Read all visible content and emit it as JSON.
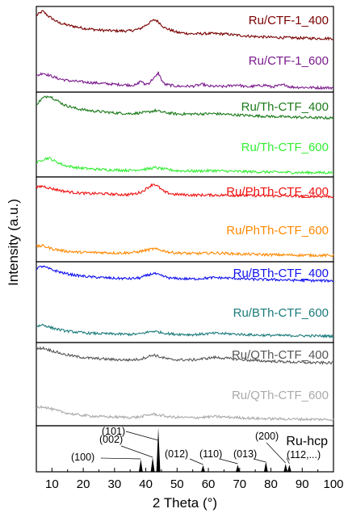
{
  "chart_data": {
    "type": "line",
    "xlabel": "2 Theta (°)",
    "ylabel": "Intensity (a.u.)",
    "xlim": [
      5,
      100
    ],
    "xticks": [
      "10",
      "20",
      "30",
      "40",
      "50",
      "60",
      "70",
      "80",
      "90",
      "100"
    ],
    "grid": false,
    "panels": [
      {
        "series": [
          {
            "name": "Ru/CTF-1_400",
            "color": "#7a0000",
            "points": [
              [
                5,
                0.8
              ],
              [
                7,
                0.92
              ],
              [
                9,
                0.78
              ],
              [
                12,
                0.62
              ],
              [
                15,
                0.55
              ],
              [
                20,
                0.47
              ],
              [
                25,
                0.42
              ],
              [
                30,
                0.4
              ],
              [
                35,
                0.4
              ],
              [
                38,
                0.45
              ],
              [
                40,
                0.55
              ],
              [
                42,
                0.66
              ],
              [
                43,
                0.69
              ],
              [
                44,
                0.64
              ],
              [
                46,
                0.48
              ],
              [
                50,
                0.36
              ],
              [
                55,
                0.32
              ],
              [
                60,
                0.33
              ],
              [
                65,
                0.32
              ],
              [
                70,
                0.28
              ],
              [
                75,
                0.25
              ],
              [
                80,
                0.23
              ],
              [
                85,
                0.22
              ],
              [
                90,
                0.21
              ],
              [
                95,
                0.2
              ],
              [
                100,
                0.2
              ]
            ]
          },
          {
            "name": "Ru/CTF-1_600",
            "color": "#7a1a8c",
            "points": [
              [
                5,
                0.33
              ],
              [
                7,
                0.42
              ],
              [
                9,
                0.36
              ],
              [
                12,
                0.27
              ],
              [
                15,
                0.22
              ],
              [
                20,
                0.18
              ],
              [
                25,
                0.15
              ],
              [
                30,
                0.12
              ],
              [
                35,
                0.1
              ],
              [
                37,
                0.1
              ],
              [
                38.4,
                0.22
              ],
              [
                39.5,
                0.12
              ],
              [
                41,
                0.15
              ],
              [
                42.2,
                0.26
              ],
              [
                43.2,
                0.32
              ],
              [
                44,
                0.43
              ],
              [
                45,
                0.24
              ],
              [
                46,
                0.12
              ],
              [
                50,
                0.07
              ],
              [
                55,
                0.07
              ],
              [
                58.3,
                0.12
              ],
              [
                60,
                0.07
              ],
              [
                65,
                0.06
              ],
              [
                69.4,
                0.11
              ],
              [
                72,
                0.05
              ],
              [
                78.4,
                0.1
              ],
              [
                80,
                0.05
              ],
              [
                84.7,
                0.11
              ],
              [
                86,
                0.05
              ],
              [
                90,
                0.04
              ],
              [
                95,
                0.03
              ],
              [
                100,
                0.03
              ]
            ]
          }
        ]
      },
      {
        "series": [
          {
            "name": "Ru/Th-CTF_400",
            "color": "#1a7a1a",
            "points": [
              [
                5,
                0.72
              ],
              [
                7,
                0.88
              ],
              [
                9,
                0.95
              ],
              [
                11,
                0.85
              ],
              [
                14,
                0.7
              ],
              [
                18,
                0.6
              ],
              [
                22,
                0.55
              ],
              [
                26,
                0.52
              ],
              [
                30,
                0.49
              ],
              [
                35,
                0.47
              ],
              [
                40,
                0.5
              ],
              [
                43,
                0.55
              ],
              [
                46,
                0.5
              ],
              [
                50,
                0.46
              ],
              [
                55,
                0.46
              ],
              [
                62,
                0.47
              ],
              [
                68,
                0.44
              ],
              [
                75,
                0.41
              ],
              [
                82,
                0.39
              ],
              [
                90,
                0.37
              ],
              [
                100,
                0.35
              ]
            ]
          },
          {
            "name": "Ru/Th-CTF_600",
            "color": "#33ee33",
            "points": [
              [
                5,
                0.28
              ],
              [
                7,
                0.38
              ],
              [
                9,
                0.42
              ],
              [
                11,
                0.33
              ],
              [
                14,
                0.22
              ],
              [
                18,
                0.16
              ],
              [
                22,
                0.13
              ],
              [
                26,
                0.11
              ],
              [
                30,
                0.1
              ],
              [
                35,
                0.09
              ],
              [
                40,
                0.12
              ],
              [
                43,
                0.16
              ],
              [
                46,
                0.12
              ],
              [
                50,
                0.08
              ],
              [
                55,
                0.07
              ],
              [
                62,
                0.08
              ],
              [
                68,
                0.06
              ],
              [
                75,
                0.05
              ],
              [
                82,
                0.04
              ],
              [
                90,
                0.03
              ],
              [
                100,
                0.03
              ]
            ]
          }
        ]
      },
      {
        "series": [
          {
            "name": "Ru/PhTh-CTF_400",
            "color": "#ee1111",
            "points": [
              [
                5,
                0.76
              ],
              [
                7,
                0.8
              ],
              [
                10,
                0.73
              ],
              [
                14,
                0.66
              ],
              [
                18,
                0.62
              ],
              [
                22,
                0.6
              ],
              [
                26,
                0.6
              ],
              [
                30,
                0.58
              ],
              [
                34,
                0.57
              ],
              [
                37,
                0.6
              ],
              [
                39,
                0.66
              ],
              [
                41,
                0.78
              ],
              [
                42.5,
                0.86
              ],
              [
                44,
                0.78
              ],
              [
                46,
                0.64
              ],
              [
                49,
                0.58
              ],
              [
                55,
                0.56
              ],
              [
                62,
                0.56
              ],
              [
                70,
                0.55
              ],
              [
                80,
                0.54
              ],
              [
                90,
                0.53
              ],
              [
                100,
                0.52
              ]
            ]
          },
          {
            "name": "Ru/PhTh-CTF_600",
            "color": "#ff8800",
            "points": [
              [
                5,
                0.32
              ],
              [
                7,
                0.34
              ],
              [
                10,
                0.26
              ],
              [
                14,
                0.2
              ],
              [
                18,
                0.17
              ],
              [
                22,
                0.16
              ],
              [
                26,
                0.16
              ],
              [
                30,
                0.15
              ],
              [
                34,
                0.15
              ],
              [
                37,
                0.17
              ],
              [
                40,
                0.22
              ],
              [
                42.5,
                0.26
              ],
              [
                45,
                0.22
              ],
              [
                48,
                0.16
              ],
              [
                55,
                0.13
              ],
              [
                62,
                0.15
              ],
              [
                70,
                0.12
              ],
              [
                80,
                0.1
              ],
              [
                90,
                0.09
              ],
              [
                100,
                0.08
              ]
            ]
          }
        ]
      },
      {
        "series": [
          {
            "name": "Ru/BTh-CTF_400",
            "color": "#1111ee",
            "points": [
              [
                5,
                0.86
              ],
              [
                7,
                0.92
              ],
              [
                10,
                0.82
              ],
              [
                14,
                0.72
              ],
              [
                18,
                0.66
              ],
              [
                22,
                0.62
              ],
              [
                26,
                0.6
              ],
              [
                30,
                0.58
              ],
              [
                35,
                0.57
              ],
              [
                38,
                0.59
              ],
              [
                40,
                0.65
              ],
              [
                42.5,
                0.72
              ],
              [
                45,
                0.65
              ],
              [
                48,
                0.58
              ],
              [
                55,
                0.56
              ],
              [
                62,
                0.6
              ],
              [
                68,
                0.58
              ],
              [
                75,
                0.55
              ],
              [
                82,
                0.54
              ],
              [
                90,
                0.52
              ],
              [
                100,
                0.51
              ]
            ]
          },
          {
            "name": "Ru/BTh-CTF_600",
            "color": "#1a7a7a",
            "points": [
              [
                5,
                0.36
              ],
              [
                7,
                0.41
              ],
              [
                10,
                0.32
              ],
              [
                14,
                0.24
              ],
              [
                18,
                0.2
              ],
              [
                22,
                0.17
              ],
              [
                26,
                0.16
              ],
              [
                30,
                0.15
              ],
              [
                35,
                0.14
              ],
              [
                38,
                0.15
              ],
              [
                40,
                0.19
              ],
              [
                42.5,
                0.23
              ],
              [
                45,
                0.19
              ],
              [
                48,
                0.15
              ],
              [
                55,
                0.13
              ],
              [
                62,
                0.17
              ],
              [
                68,
                0.15
              ],
              [
                75,
                0.12
              ],
              [
                82,
                0.11
              ],
              [
                90,
                0.1
              ],
              [
                100,
                0.09
              ]
            ]
          }
        ]
      },
      {
        "series": [
          {
            "name": "Ru/QTh-CTF_400",
            "color": "#555555",
            "points": [
              [
                5,
                0.86
              ],
              [
                7,
                0.9
              ],
              [
                10,
                0.82
              ],
              [
                14,
                0.72
              ],
              [
                18,
                0.66
              ],
              [
                22,
                0.62
              ],
              [
                26,
                0.6
              ],
              [
                30,
                0.58
              ],
              [
                35,
                0.57
              ],
              [
                38,
                0.59
              ],
              [
                40,
                0.64
              ],
              [
                42.5,
                0.71
              ],
              [
                45,
                0.64
              ],
              [
                48,
                0.58
              ],
              [
                55,
                0.57
              ],
              [
                62,
                0.64
              ],
              [
                68,
                0.6
              ],
              [
                75,
                0.55
              ],
              [
                82,
                0.53
              ],
              [
                90,
                0.5
              ],
              [
                100,
                0.49
              ]
            ]
          },
          {
            "name": "Ru/QTh-CTF_600",
            "color": "#aaaaaa",
            "points": [
              [
                5,
                0.4
              ],
              [
                7,
                0.44
              ],
              [
                10,
                0.36
              ],
              [
                14,
                0.27
              ],
              [
                18,
                0.21
              ],
              [
                22,
                0.18
              ],
              [
                26,
                0.16
              ],
              [
                30,
                0.15
              ],
              [
                35,
                0.14
              ],
              [
                38,
                0.15
              ],
              [
                40,
                0.19
              ],
              [
                42.5,
                0.23
              ],
              [
                45,
                0.19
              ],
              [
                48,
                0.15
              ],
              [
                55,
                0.13
              ],
              [
                62,
                0.16
              ],
              [
                68,
                0.14
              ],
              [
                75,
                0.11
              ],
              [
                82,
                0.1
              ],
              [
                90,
                0.09
              ],
              [
                100,
                0.08
              ]
            ]
          }
        ]
      }
    ],
    "reference": {
      "name": "Ru-hcp",
      "peaks": [
        {
          "x": 38.4,
          "h": 0.28
        },
        {
          "x": 42.2,
          "h": 0.33
        },
        {
          "x": 44.0,
          "h": 1.0
        },
        {
          "x": 58.3,
          "h": 0.15
        },
        {
          "x": 69.4,
          "h": 0.16
        },
        {
          "x": 78.4,
          "h": 0.23
        },
        {
          "x": 84.7,
          "h": 0.18
        },
        {
          "x": 85.9,
          "h": 0.16
        }
      ],
      "labels": [
        "(100)",
        "(002)",
        "(101)",
        "(012)",
        "(110)",
        "(013)",
        "(200)",
        "(112,...)"
      ]
    }
  }
}
